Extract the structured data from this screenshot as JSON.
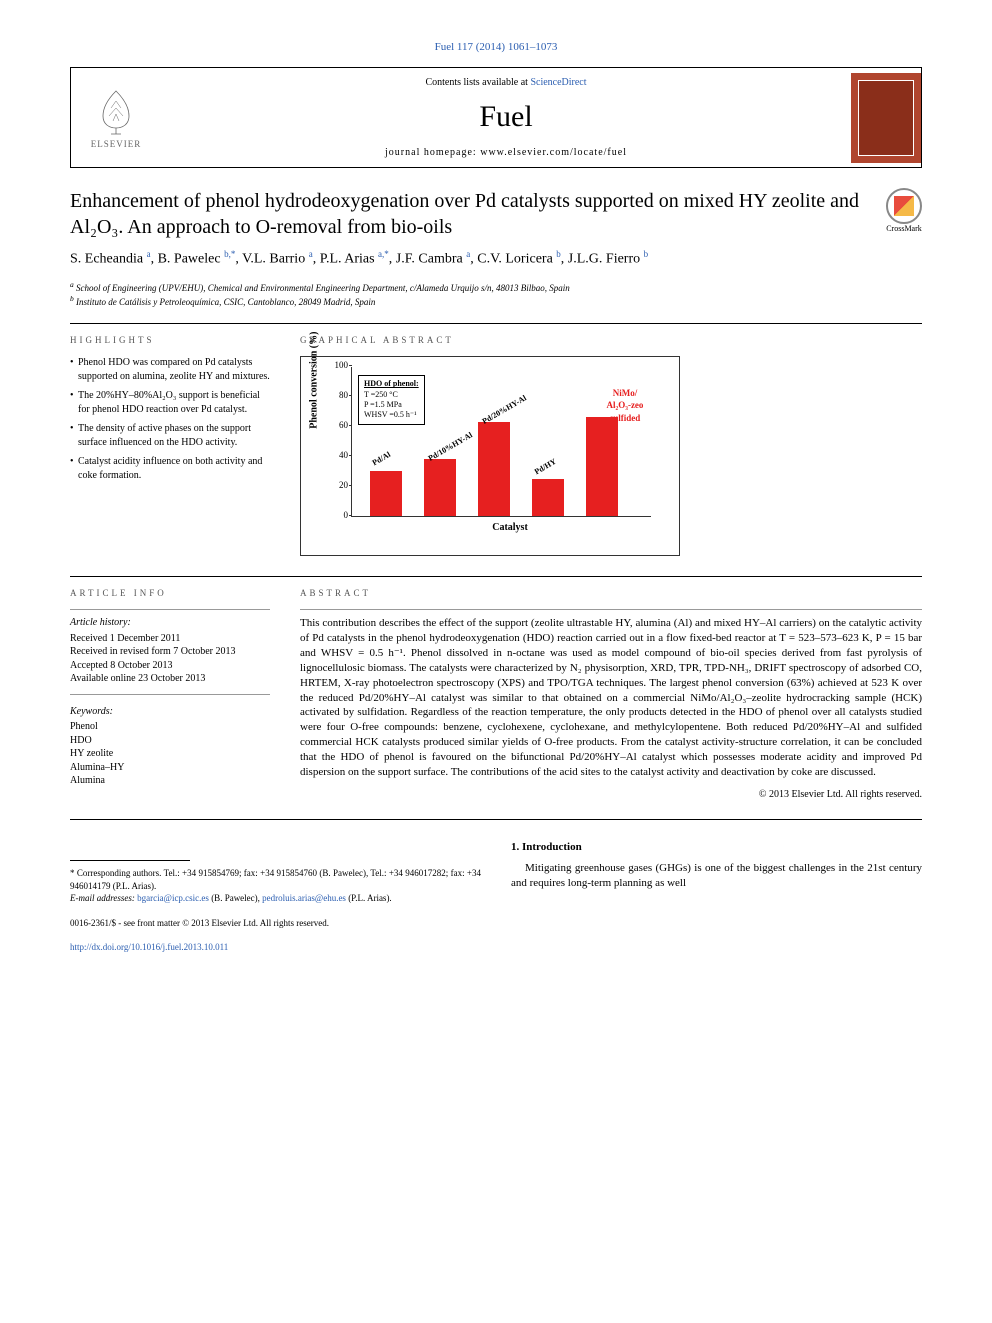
{
  "top_link": "Fuel 117 (2014) 1061–1073",
  "header": {
    "publisher_name": "ELSEVIER",
    "contents_prefix": "Contents lists available at ",
    "contents_link": "ScienceDirect",
    "journal_name": "Fuel",
    "homepage_prefix": "journal homepage: ",
    "homepage_url": "www.elsevier.com/locate/fuel"
  },
  "crossmark": "CrossMark",
  "title": "Enhancement of phenol hydrodeoxygenation over Pd catalysts supported on mixed HY zeolite and Al₂O₃. An approach to O-removal from bio-oils",
  "authors_html": "S. Echeandia <sup>a</sup>, B. Pawelec <sup>b,*</sup>, V.L. Barrio <sup>a</sup>, P.L. Arias <sup>a,*</sup>, J.F. Cambra <sup>a</sup>, C.V. Loricera <sup>b</sup>, J.L.G. Fierro <sup>b</sup>",
  "affiliations": {
    "a": "School of Engineering (UPV/EHU), Chemical and Environmental Engineering Department, c/Alameda Urquijo s/n, 48013 Bilbao, Spain",
    "b": "Instituto de Catálisis y Petroleoquímica, CSIC, Cantoblanco, 28049 Madrid, Spain"
  },
  "sections": {
    "highlights": "HIGHLIGHTS",
    "graphical_abstract": "GRAPHICAL ABSTRACT",
    "article_info": "ARTICLE INFO",
    "abstract": "ABSTRACT"
  },
  "highlights": [
    "Phenol HDO was compared on Pd catalysts supported on alumina, zeolite HY and mixtures.",
    "The 20%HY–80%Al₂O₃ support is beneficial for phenol HDO reaction over Pd catalyst.",
    "The density of active phases on the support surface influenced on the HDO activity.",
    "Catalyst acidity influence on both activity and coke formation."
  ],
  "chart": {
    "type": "bar",
    "y_label": "Phenol conversion (%)",
    "x_label": "Catalyst",
    "ylim": [
      0,
      100
    ],
    "y_ticks": [
      0,
      20,
      40,
      60,
      80,
      100
    ],
    "bar_color": "#e62020",
    "legend_title": "HDO of phenol:",
    "legend_lines": [
      "T =250 °C",
      "P =1.5 MPa",
      "WHSV =0.5 h⁻¹"
    ],
    "reference_label": "NiMo/\nAl₂O₃-zeo\nsulfided",
    "bars": [
      {
        "label": "Pd/Al",
        "value": 30
      },
      {
        "label": "Pd/10%HY-Al",
        "value": 38
      },
      {
        "label": "Pd/20%HY-Al",
        "value": 63
      },
      {
        "label": "Pd/HY",
        "value": 25
      },
      {
        "label": "",
        "value": 66
      }
    ]
  },
  "article_info": {
    "history_head": "Article history:",
    "received": "Received 1 December 2011",
    "revised": "Received in revised form 7 October 2013",
    "accepted": "Accepted 8 October 2013",
    "online": "Available online 23 October 2013",
    "keywords_head": "Keywords:",
    "keywords": [
      "Phenol",
      "HDO",
      "HY zeolite",
      "Alumina–HY",
      "Alumina"
    ]
  },
  "abstract": "This contribution describes the effect of the support (zeolite ultrastable HY, alumina (Al) and mixed HY–Al carriers) on the catalytic activity of Pd catalysts in the phenol hydrodeoxygenation (HDO) reaction carried out in a flow fixed-bed reactor at T = 523–573–623 K, P = 15 bar and WHSV = 0.5 h⁻¹. Phenol dissolved in n-octane was used as model compound of bio-oil species derived from fast pyrolysis of lignocellulosic biomass. The catalysts were characterized by N₂ physisorption, XRD, TPR, TPD-NH₃, DRIFT spectroscopy of adsorbed CO, HRTEM, X-ray photoelectron spectroscopy (XPS) and TPO/TGA techniques. The largest phenol conversion (63%) achieved at 523 K over the reduced Pd/20%HY–Al catalyst was similar to that obtained on a commercial NiMo/Al₂O₃–zeolite hydrocracking sample (HCK) activated by sulfidation. Regardless of the reaction temperature, the only products detected in the HDO of phenol over all catalysts studied were four O-free compounds: benzene, cyclohexene, cyclohexane, and methylcylopentene. Both reduced Pd/20%HY–Al and sulfided commercial HCK catalysts produced similar yields of O-free products. From the catalyst activity-structure correlation, it can be concluded that the HDO of phenol is favoured on the bifunctional Pd/20%HY–Al catalyst which possesses moderate acidity and improved Pd dispersion on the support surface. The contributions of the acid sites to the catalyst activity and deactivation by coke are discussed.",
  "copyright": "© 2013 Elsevier Ltd. All rights reserved.",
  "intro": {
    "heading": "1. Introduction",
    "text": "Mitigating greenhouse gases (GHGs) is one of the biggest challenges in the 21st century and requires long-term planning as well"
  },
  "footnotes": {
    "corresponding": "* Corresponding authors. Tel.: +34 915854769; fax: +34 915854760 (B. Pawelec), Tel.: +34 946017282; fax: +34 946014179 (P.L. Arias).",
    "emails_prefix": "E-mail addresses: ",
    "email1": "bgarcia@icp.csic.es",
    "email1_who": " (B. Pawelec), ",
    "email2": "pedroluis.arias@ehu.es",
    "email2_who": " (P.L. Arias)."
  },
  "doi": {
    "line1": "0016-2361/$ - see front matter © 2013 Elsevier Ltd. All rights reserved.",
    "url": "http://dx.doi.org/10.1016/j.fuel.2013.10.011"
  }
}
